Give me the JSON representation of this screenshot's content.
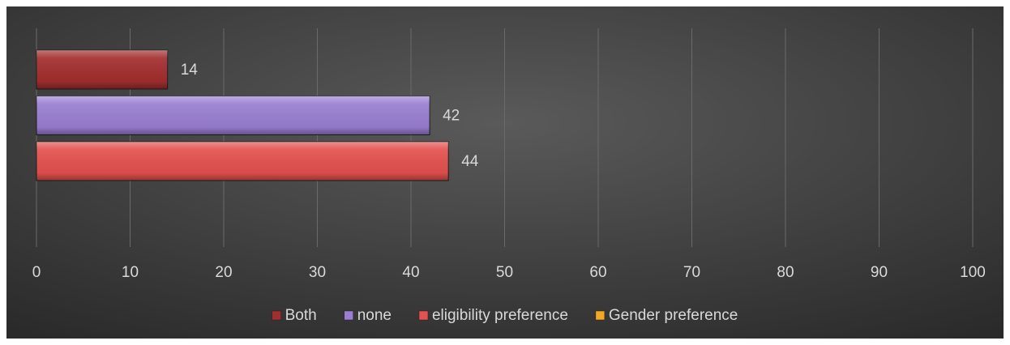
{
  "chart_data": {
    "type": "bar",
    "orientation": "horizontal",
    "categories": [
      null
    ],
    "series": [
      {
        "name": "Both",
        "color": "#a32e2e",
        "values": [
          14
        ]
      },
      {
        "name": "none",
        "color": "#9a7fd1",
        "values": [
          42
        ]
      },
      {
        "name": "eligibility preference",
        "color": "#e4514f",
        "values": [
          44
        ]
      },
      {
        "name": "Gender preference",
        "color": "#f5a623",
        "values": [
          null
        ]
      }
    ],
    "xlim": [
      0,
      100
    ],
    "xticks": [
      0,
      10,
      20,
      30,
      40,
      50,
      60,
      70,
      80,
      90,
      100
    ],
    "grid": true,
    "legend": "bottom"
  }
}
